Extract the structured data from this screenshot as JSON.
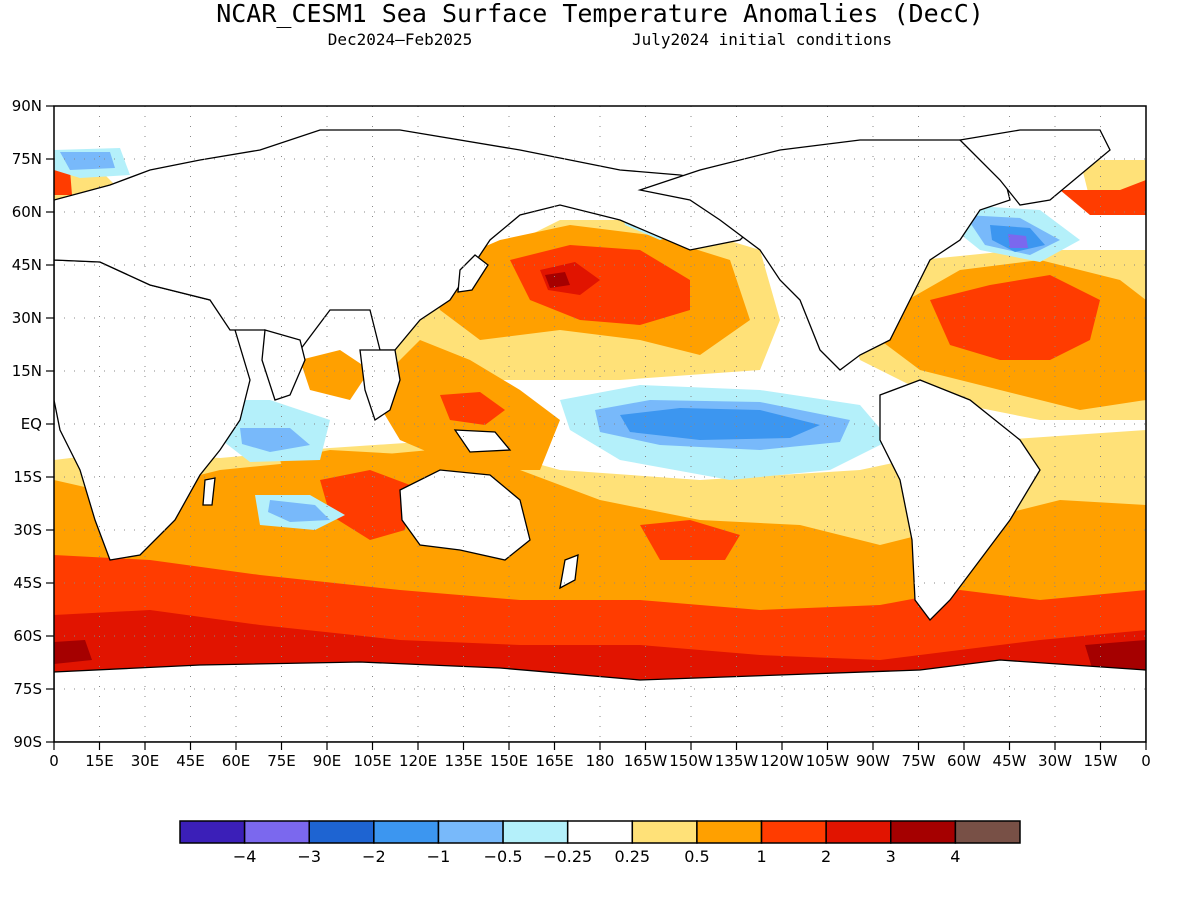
{
  "title": "NCAR_CESM1 Sea Surface Temperature Anomalies (DecC)",
  "subtitle_left": "Dec2024–Feb2025",
  "subtitle_right": "July2024 initial conditions",
  "map": {
    "projection": "equirectangular",
    "lon_range": [
      0,
      360
    ],
    "lat_range": [
      -90,
      90
    ],
    "grid": "dotted, every 15 degrees",
    "lat_labels": [
      "90N",
      "75N",
      "60N",
      "45N",
      "30N",
      "15N",
      "EQ",
      "15S",
      "30S",
      "45S",
      "60S",
      "75S",
      "90S"
    ],
    "lon_labels": [
      "0",
      "15E",
      "30E",
      "45E",
      "60E",
      "75E",
      "90E",
      "105E",
      "120E",
      "135E",
      "150E",
      "165E",
      "180",
      "165W",
      "150W",
      "135W",
      "120W",
      "105W",
      "90W",
      "75W",
      "60W",
      "45W",
      "30W",
      "15W",
      "0"
    ],
    "regions": [
      {
        "name": "Southern Ocean warm band",
        "category": "1 to 2"
      },
      {
        "name": "Southern Ocean strongest warm patches",
        "category": "2 to 3"
      },
      {
        "name": "Southern Ocean extreme warm patches",
        "category": "3 to 4"
      },
      {
        "name": "North Pacific warm blob",
        "category": "1 to 2"
      },
      {
        "name": "North Pacific warm core",
        "category": "2 to 3"
      },
      {
        "name": "Equatorial central-east Pacific cool tongue",
        "category": "-1 to -0.5"
      },
      {
        "name": "Equatorial Pacific cool core",
        "category": "-2 to -1"
      },
      {
        "name": "Subtropical North Atlantic warm",
        "category": "1 to 2"
      },
      {
        "name": "Labrador Sea cool",
        "category": "-2 to -1"
      },
      {
        "name": "Labrador Sea cool core",
        "category": "-3 to -2"
      },
      {
        "name": "Southern Indian Ocean cool",
        "category": "-1 to -0.5"
      },
      {
        "name": "Barents Sea warm",
        "category": "1 to 2"
      }
    ]
  },
  "colorbar": {
    "colors": [
      "#3b1fb8",
      "#7b68ee",
      "#1e64d2",
      "#3c96f0",
      "#78b9fa",
      "#b4f0fa",
      "#ffffff",
      "#ffe178",
      "#ffa000",
      "#ff3c00",
      "#e11400",
      "#a50000",
      "#785046"
    ],
    "labels": [
      "−4",
      "−3",
      "−2",
      "−1",
      "−0.5",
      "−0.25",
      "0.25",
      "0.5",
      "1",
      "2",
      "3",
      "4"
    ]
  }
}
